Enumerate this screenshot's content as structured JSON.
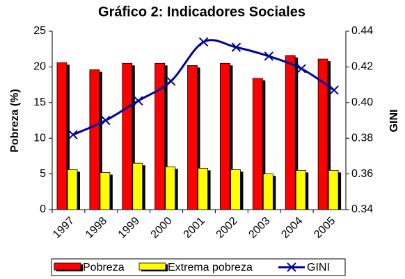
{
  "chart_data": {
    "type": "bar",
    "title": "Gráfico 2: Indicadores Sociales",
    "categories": [
      "1997",
      "1998",
      "1999",
      "2000",
      "2001",
      "2002",
      "2003",
      "2004",
      "2005"
    ],
    "ylabel": "Pobreza (%)",
    "y2label": "GINI",
    "ylim": [
      0,
      25
    ],
    "yticks": [
      0,
      5,
      10,
      15,
      20,
      25
    ],
    "y2lim": [
      0.34,
      0.44
    ],
    "y2ticks": [
      {
        "value": 0.34,
        "label": "0.34"
      },
      {
        "value": 0.36,
        "label": "0.36"
      },
      {
        "value": 0.38,
        "label": "0.38"
      },
      {
        "value": 0.4,
        "label": "0.40"
      },
      {
        "value": 0.42,
        "label": "0.42"
      },
      {
        "value": 0.44,
        "label": "0.44"
      }
    ],
    "legend": "bottom",
    "series": [
      {
        "name": "Pobreza",
        "type": "bar",
        "color": "#ff0000",
        "values": [
          20.6,
          19.6,
          20.5,
          20.5,
          20.2,
          20.5,
          18.4,
          21.6,
          21.1
        ]
      },
      {
        "name": "Extrema pobreza",
        "type": "bar",
        "color": "#ffff00",
        "values": [
          5.6,
          5.2,
          6.5,
          6.0,
          5.8,
          5.6,
          5.0,
          5.5,
          5.5
        ]
      },
      {
        "name": "GINI",
        "type": "line",
        "axis": "y2",
        "color": "#000099",
        "values": [
          0.382,
          0.39,
          0.401,
          0.412,
          0.434,
          0.431,
          0.426,
          0.419,
          0.407
        ]
      }
    ]
  }
}
